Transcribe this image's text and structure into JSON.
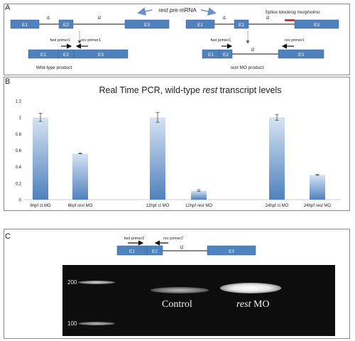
{
  "panels": {
    "a": "A",
    "b": "B",
    "c": "C"
  },
  "panel_a": {
    "pre_mrna_italic": "rest",
    "pre_mrna_rest": " pre-mRNA",
    "splice_label": "Splice blocking morpholino",
    "exons": {
      "e1": "E1",
      "e2": "E2",
      "e3": "E3"
    },
    "introns": {
      "i1": "i1",
      "i2": "i2"
    },
    "fwd_primer": "fwd primer1",
    "rev_primer": "rev primer1",
    "wt_product": "Wild-type product",
    "mo_product_italic": "rest",
    "mo_product_rest": " MO product",
    "colors": {
      "exon": "#4f81bd",
      "morpholino": "#e0301e",
      "arrow": "#6b8fc9"
    }
  },
  "chart_data": {
    "type": "bar",
    "title_pre": "Real Time PCR, wild-type ",
    "title_italic": "rest",
    "title_post": " transcript levels",
    "categories": [
      "6hpf ct MO",
      "6hpf rest MO",
      "12hpf ct MO",
      "12hpf rest MO",
      "24hpf ct MO",
      "24hpf rest MO"
    ],
    "tick_pre": [
      "6hpf ct MO",
      "6hpf ",
      "12hpf ct MO",
      "12hpf ",
      "24hpf ct MO",
      "24hpf "
    ],
    "tick_italic": [
      "",
      "rest",
      "",
      "rest",
      "",
      "rest"
    ],
    "tick_post": [
      "",
      " MO",
      "",
      " MO",
      "",
      " MO"
    ],
    "values": [
      1.0,
      0.56,
      1.0,
      0.11,
      1.0,
      0.3
    ],
    "errors": [
      0.05,
      0.005,
      0.06,
      0.01,
      0.035,
      0.005
    ],
    "ylim": [
      0,
      1.2
    ],
    "yticks": [
      "0",
      "0.2",
      "0.4",
      "0.6",
      "0.8",
      "1",
      "1.2"
    ],
    "grid": false,
    "bar_color": "#4f81bd"
  },
  "panel_c": {
    "fwd_primer": "fwd primer2",
    "rev_primer": "rev primer2",
    "exons": {
      "e1": "E1",
      "e2": "E2",
      "e3": "E3"
    },
    "intron": "i2",
    "gel": {
      "marker_200": "200",
      "marker_100": "100",
      "control_label": "Control",
      "mo_label_italic": "rest",
      "mo_label_rest": " MO"
    }
  }
}
